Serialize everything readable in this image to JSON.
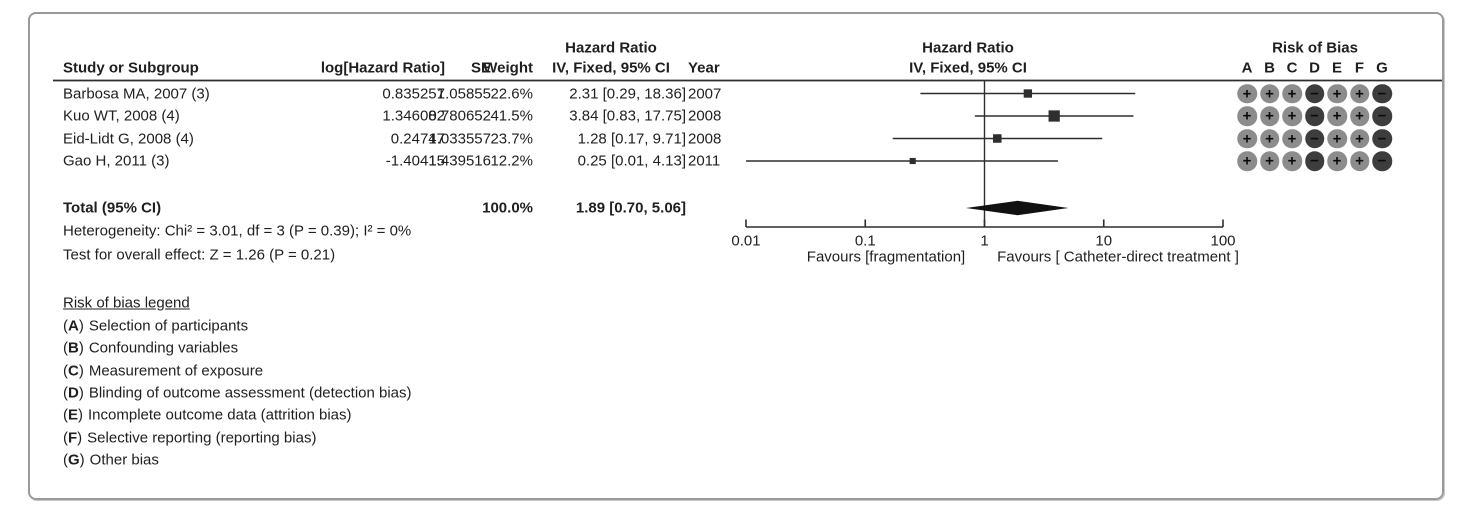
{
  "table": {
    "headers": {
      "study": "Study or Subgroup",
      "log_hr": "log[Hazard Ratio]",
      "se": "SE",
      "weight": "Weight",
      "hr_line1": "Hazard Ratio",
      "hr_line2": "IV, Fixed, 95% CI",
      "year": "Year"
    },
    "rows": [
      {
        "study": "Barbosa MA, 2007 (3)",
        "log_hr": "0.835257",
        "se": "1.05855",
        "weight": "22.6%",
        "hr_ci": "2.31 [0.29, 18.36]",
        "year": "2007",
        "rob": [
          "+",
          "+",
          "+",
          "-",
          "+",
          "+",
          "-"
        ]
      },
      {
        "study": "Kuo WT, 2008 (4)",
        "log_hr": "1.346082",
        "se": "0.780652",
        "weight": "41.5%",
        "hr_ci": "3.84 [0.83, 17.75]",
        "year": "2008",
        "rob": [
          "+",
          "+",
          "+",
          "-",
          "+",
          "+",
          "-"
        ]
      },
      {
        "study": "Eid-Lidt G, 2008 (4)",
        "log_hr": "0.24747",
        "se": "1.033557",
        "weight": "23.7%",
        "hr_ci": "1.28 [0.17, 9.71]",
        "year": "2008",
        "rob": [
          "+",
          "+",
          "+",
          "-",
          "+",
          "+",
          "-"
        ]
      },
      {
        "study": "Gao H, 2011 (3)",
        "log_hr": "-1.40415",
        "se": "1.439516",
        "weight": "12.2%",
        "hr_ci": "0.25 [0.01, 4.13]",
        "year": "2011",
        "rob": [
          "+",
          "+",
          "+",
          "-",
          "+",
          "+",
          "-"
        ]
      }
    ],
    "total": {
      "label": "Total (95% CI)",
      "weight": "100.0%",
      "hr_ci": "1.89 [0.70, 5.06]"
    },
    "heterogeneity": "Heterogeneity: Chi² = 3.01, df = 3 (P = 0.39); I² = 0%",
    "overall_effect": "Test for overall effect: Z = 1.26 (P = 0.21)"
  },
  "plot": {
    "header_line1": "Hazard Ratio",
    "header_line2": "IV, Fixed, 95% CI",
    "tick_labels": [
      "0.01",
      "0.1",
      "1",
      "10",
      "100"
    ],
    "favours_left": "Favours [fragmentation]",
    "favours_right": "Favours [ Catheter-direct treatment ]"
  },
  "risk_of_bias": {
    "title": "Risk of Bias",
    "columns": [
      "A",
      "B",
      "C",
      "D",
      "E",
      "F",
      "G"
    ],
    "colors": {
      "plus_fill": "#8c8c8c",
      "minus_fill": "#3d3d3d",
      "symbol": "#0b0b0b"
    }
  },
  "legend": {
    "title": "Risk of bias legend",
    "items": [
      {
        "key": "A",
        "text": "Selection of participants"
      },
      {
        "key": "B",
        "text": "Confounding variables"
      },
      {
        "key": "C",
        "text": "Measurement of exposure"
      },
      {
        "key": "D",
        "text": "Blinding of outcome assessment (detection bias)"
      },
      {
        "key": "E",
        "text": "Incomplete outcome data (attrition bias)"
      },
      {
        "key": "F",
        "text": "Selective reporting (reporting bias)"
      },
      {
        "key": "G",
        "text": "Other bias"
      }
    ]
  },
  "chart_data": {
    "type": "forest",
    "effect_measure": "Hazard Ratio",
    "method": "IV, Fixed, 95% CI",
    "x_scale": "log10",
    "xlim": [
      0.01,
      100
    ],
    "x_ticks": [
      0.01,
      0.1,
      1,
      10,
      100
    ],
    "reference_line": 1,
    "studies": [
      {
        "name": "Barbosa MA, 2007 (3)",
        "log_hr": 0.835257,
        "se": 1.05855,
        "weight_pct": 22.6,
        "hr": 2.31,
        "ci_low": 0.29,
        "ci_high": 18.36,
        "year": 2007
      },
      {
        "name": "Kuo WT, 2008 (4)",
        "log_hr": 1.346082,
        "se": 0.780652,
        "weight_pct": 41.5,
        "hr": 3.84,
        "ci_low": 0.83,
        "ci_high": 17.75,
        "year": 2008
      },
      {
        "name": "Eid-Lidt G, 2008 (4)",
        "log_hr": 0.24747,
        "se": 1.033557,
        "weight_pct": 23.7,
        "hr": 1.28,
        "ci_low": 0.17,
        "ci_high": 9.71,
        "year": 2008
      },
      {
        "name": "Gao H, 2011 (3)",
        "log_hr": -1.40415,
        "se": 1.439516,
        "weight_pct": 12.2,
        "hr": 0.25,
        "ci_low": 0.01,
        "ci_high": 4.13,
        "year": 2011
      }
    ],
    "total": {
      "hr": 1.89,
      "ci_low": 0.7,
      "ci_high": 5.06,
      "weight_pct": 100.0
    },
    "heterogeneity": {
      "chi2": 3.01,
      "df": 3,
      "p": 0.39,
      "i2_pct": 0
    },
    "overall_effect": {
      "z": 1.26,
      "p": 0.21
    },
    "favours": {
      "left": "Favours [fragmentation]",
      "right": "Favours [ Catheter-direct treatment ]"
    }
  }
}
